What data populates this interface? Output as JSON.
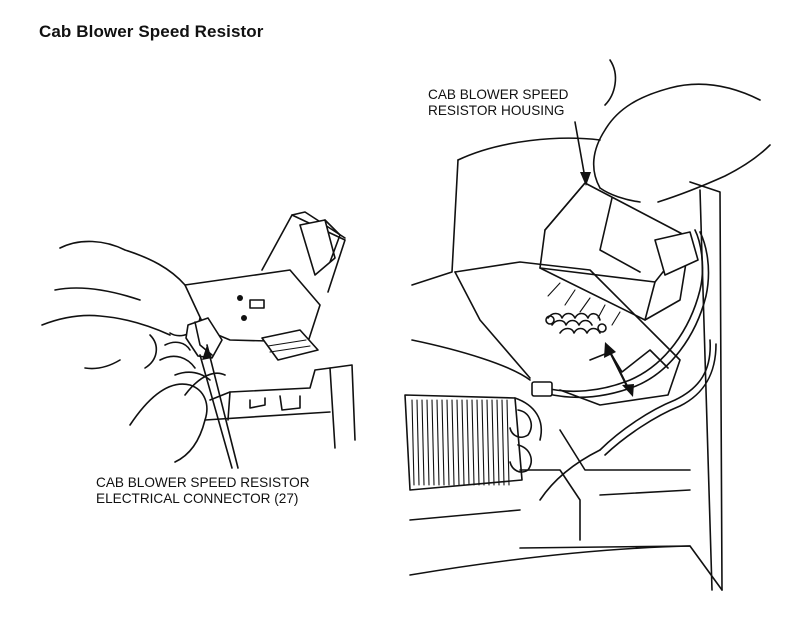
{
  "title": "Cab Blower Speed Resistor",
  "callouts": {
    "connector": {
      "line1": "CAB BLOWER SPEED RESISTOR",
      "line2": "ELECTRICAL CONNECTOR (27)"
    },
    "housing": {
      "line1": "CAB BLOWER SPEED",
      "line2": "RESISTOR HOUSING"
    }
  }
}
